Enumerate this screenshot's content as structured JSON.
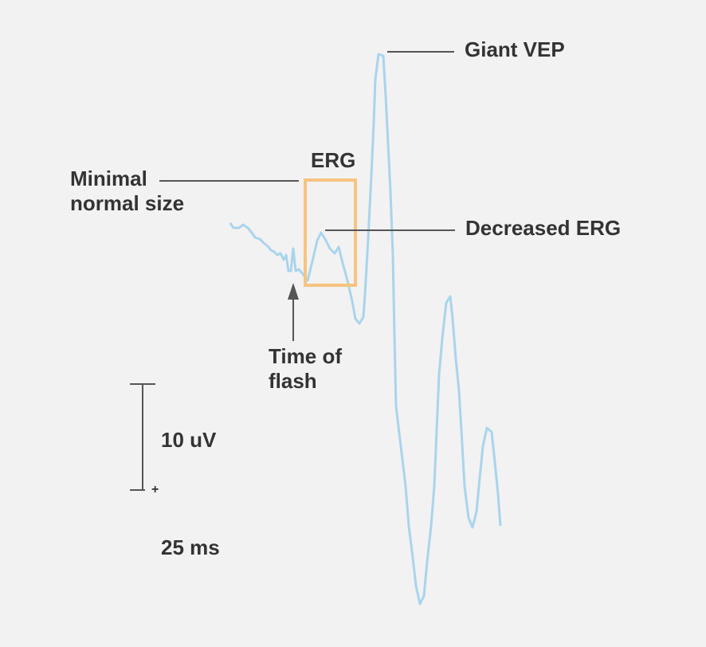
{
  "labels": {
    "giant_vep": "Giant VEP",
    "erg": "ERG",
    "minimal_normal_size": [
      "Minimal",
      "normal size"
    ],
    "decreased_erg": "Decreased ERG",
    "time_of_flash": [
      "Time of",
      "flash"
    ],
    "scale_amplitude": "10 uV",
    "scale_polarity": "+",
    "scale_time": "25 ms"
  }
}
